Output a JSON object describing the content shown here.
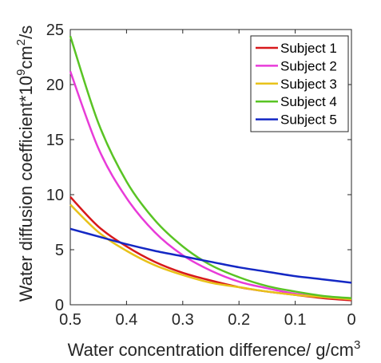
{
  "chart_data": {
    "type": "line",
    "xlabel": "Water concentration difference/ g/cm",
    "xlabel_sup": "3",
    "ylabel": "Water diffusion coefficient*10",
    "ylabel_sup1": "9",
    "ylabel_mid": "cm",
    "ylabel_sup2": "2",
    "ylabel_end": "/s",
    "xlim": [
      0,
      0.5
    ],
    "x_reversed": true,
    "ylim": [
      0,
      25
    ],
    "xticks": [
      0.5,
      0.4,
      0.3,
      0.2,
      0.1,
      0
    ],
    "xtick_labels": [
      "0.5",
      "0.4",
      "0.3",
      "0.2",
      "0.1",
      "0"
    ],
    "yticks": [
      0,
      5,
      10,
      15,
      20,
      25
    ],
    "ytick_labels": [
      "0",
      "5",
      "10",
      "15",
      "20",
      "25"
    ],
    "grid": false,
    "legend_position": "top-right",
    "x": [
      0.5,
      0.45,
      0.4,
      0.35,
      0.3,
      0.25,
      0.2,
      0.15,
      0.1,
      0.05,
      0
    ],
    "series": [
      {
        "name": "Subject 1",
        "color": "#d7191c",
        "values": [
          9.8,
          7.1,
          5.3,
          3.9,
          2.9,
          2.2,
          1.6,
          1.2,
          0.9,
          0.6,
          0.4
        ]
      },
      {
        "name": "Subject 2",
        "color": "#e83bd9",
        "values": [
          21.2,
          14.2,
          9.7,
          6.6,
          4.5,
          3.1,
          2.1,
          1.5,
          1.0,
          0.7,
          0.5
        ]
      },
      {
        "name": "Subject 3",
        "color": "#e8c21a",
        "values": [
          9.1,
          6.6,
          4.9,
          3.6,
          2.7,
          2.0,
          1.6,
          1.2,
          0.9,
          0.7,
          0.5
        ]
      },
      {
        "name": "Subject 4",
        "color": "#59c424",
        "values": [
          24.4,
          16.5,
          11.2,
          7.7,
          5.3,
          3.6,
          2.5,
          1.7,
          1.2,
          0.8,
          0.6
        ]
      },
      {
        "name": "Subject 5",
        "color": "#1428c4",
        "values": [
          6.9,
          6.2,
          5.5,
          4.9,
          4.4,
          3.9,
          3.4,
          3.0,
          2.6,
          2.3,
          2.0
        ]
      }
    ]
  }
}
